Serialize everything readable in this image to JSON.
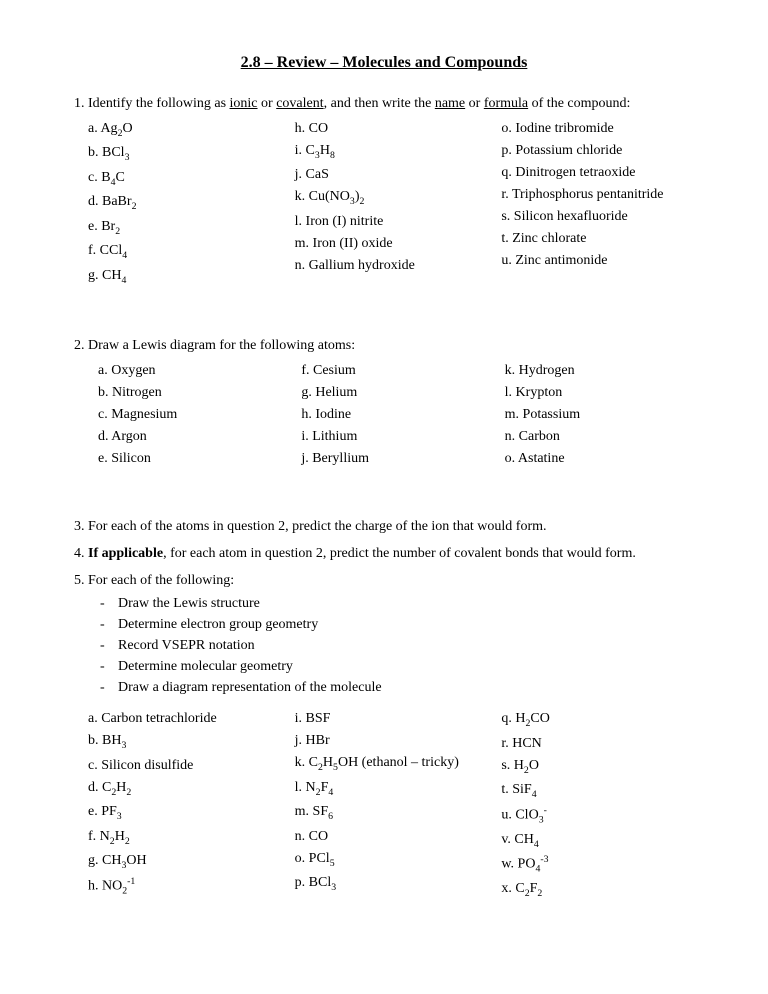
{
  "title": "2.8 – Review – Molecules and Compounds",
  "q1": {
    "prompt_pre": "Identify the following as ",
    "prompt_u1": "ionic",
    "prompt_mid1": " or ",
    "prompt_u2": "covalent",
    "prompt_mid2": ", and then write the ",
    "prompt_u3": "name",
    "prompt_mid3": " or ",
    "prompt_u4": "formula",
    "prompt_post": " of the compound:",
    "col1": [
      "a. Ag₂O",
      "b. BCl₃",
      "c. B₄C",
      "d. BaBr₂",
      "e. Br₂",
      "f. CCl₄",
      "g. CH₄"
    ],
    "col2": [
      "h. CO",
      "i. C₃H₈",
      "j. CaS",
      "k. Cu(NO₃)₂",
      "l. Iron (I) nitrite",
      "m. Iron (II) oxide",
      "n. Gallium hydroxide"
    ],
    "col3": [
      "o. Iodine tribromide",
      "p. Potassium chloride",
      "q. Dinitrogen tetraoxide",
      "r. Triphosphorus pentanitride",
      "s. Silicon hexafluoride",
      "t. Zinc chlorate",
      "u. Zinc antimonide"
    ]
  },
  "q2": {
    "prompt": "Draw a Lewis diagram for the following atoms:",
    "col1": [
      "a. Oxygen",
      "b. Nitrogen",
      "c. Magnesium",
      "d. Argon",
      "e. Silicon"
    ],
    "col2": [
      "f. Cesium",
      "g. Helium",
      "h. Iodine",
      "i. Lithium",
      "j. Beryllium"
    ],
    "col3": [
      "k. Hydrogen",
      "l. Krypton",
      "m. Potassium",
      "n. Carbon",
      "o. Astatine"
    ]
  },
  "q3": "For each of the atoms in question 2, predict the charge of the ion that would form.",
  "q4_bold": "If applicable",
  "q4_rest": ", for each atom in question 2, predict the number of covalent bonds that would form.",
  "q5": {
    "prompt": "For each of the following:",
    "sub": [
      "Draw the Lewis structure",
      "Determine electron group geometry",
      "Record VSEPR notation",
      "Determine molecular geometry",
      "Draw a diagram representation of the molecule"
    ],
    "col1": [
      "a. Carbon tetrachloride",
      "b. BH₃",
      "c. Silicon disulfide",
      "d. C₂H₂",
      "e. PF₃",
      "f. N₂H₂",
      "g. CH₃OH",
      "h. NO₂⁻¹"
    ],
    "col2": [
      "i. BSF",
      "j. HBr",
      "k. C₂H₅OH (ethanol – tricky)",
      "l. N₂F₄",
      "m. SF₆",
      "n. CO",
      "o. PCl₅",
      "p. BCl₃"
    ],
    "col3": [
      "q. H₂CO",
      "r. HCN",
      "s. H₂O",
      "t. SiF₄",
      "u. ClO₃⁻",
      "v. CH₄",
      "w. PO₄⁻³",
      "x. C₂F₂"
    ]
  }
}
